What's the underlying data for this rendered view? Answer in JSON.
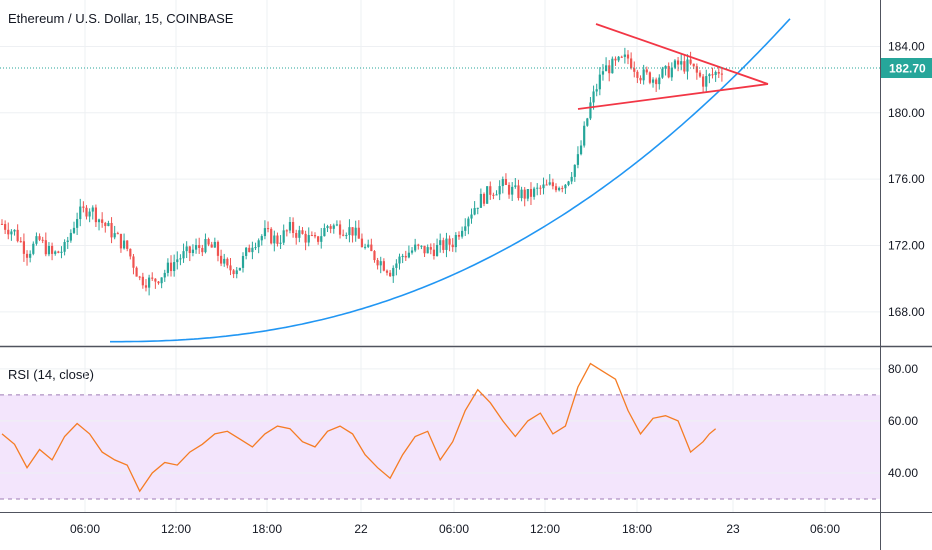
{
  "header": {
    "title": "Ethereum / U.S. Dollar, 15, COINBASE"
  },
  "rsi": {
    "title": "RSI (14, close)"
  },
  "chart_data": [
    {
      "type": "candlestick",
      "name": "price",
      "ylim": [
        166.0,
        186.8
      ],
      "y_ticks": [
        "184.00",
        "180.00",
        "176.00",
        "172.00",
        "168.00"
      ],
      "y_tick_values": [
        184,
        180,
        176,
        172,
        168
      ],
      "last_price": 182.7,
      "last_price_label": "182.70",
      "x_ticks": [
        "06:00",
        "12:00",
        "18:00",
        "22",
        "06:00",
        "12:00",
        "18:00",
        "23",
        "06:00"
      ],
      "grid": true,
      "colors": {
        "up": "#26a69a",
        "down": "#ef5350",
        "trendline": "#f23645",
        "curve": "#2196f3",
        "price_line": "#26a69a"
      },
      "anchors": [
        {
          "i": 0,
          "v": 173.3
        },
        {
          "i": 4,
          "v": 172.8
        },
        {
          "i": 8,
          "v": 171.6
        },
        {
          "i": 12,
          "v": 172.3
        },
        {
          "i": 16,
          "v": 171.4
        },
        {
          "i": 20,
          "v": 171.8
        },
        {
          "i": 24,
          "v": 173.8
        },
        {
          "i": 28,
          "v": 174.3
        },
        {
          "i": 32,
          "v": 173.4
        },
        {
          "i": 36,
          "v": 172.6
        },
        {
          "i": 40,
          "v": 171.8
        },
        {
          "i": 44,
          "v": 170.0
        },
        {
          "i": 48,
          "v": 169.8
        },
        {
          "i": 52,
          "v": 170.4
        },
        {
          "i": 56,
          "v": 171.2
        },
        {
          "i": 60,
          "v": 171.6
        },
        {
          "i": 64,
          "v": 172.0
        },
        {
          "i": 68,
          "v": 171.8
        },
        {
          "i": 72,
          "v": 170.5
        },
        {
          "i": 76,
          "v": 170.8
        },
        {
          "i": 80,
          "v": 172.2
        },
        {
          "i": 84,
          "v": 172.7
        },
        {
          "i": 88,
          "v": 172.3
        },
        {
          "i": 92,
          "v": 173.0
        },
        {
          "i": 96,
          "v": 172.6
        },
        {
          "i": 100,
          "v": 172.2
        },
        {
          "i": 104,
          "v": 173.2
        },
        {
          "i": 108,
          "v": 173.1
        },
        {
          "i": 112,
          "v": 172.9
        },
        {
          "i": 116,
          "v": 171.8
        },
        {
          "i": 120,
          "v": 171.2
        },
        {
          "i": 124,
          "v": 170.5
        },
        {
          "i": 128,
          "v": 171.4
        },
        {
          "i": 132,
          "v": 171.8
        },
        {
          "i": 136,
          "v": 171.7
        },
        {
          "i": 140,
          "v": 171.9
        },
        {
          "i": 144,
          "v": 172.2
        },
        {
          "i": 148,
          "v": 173.6
        },
        {
          "i": 152,
          "v": 174.6
        },
        {
          "i": 156,
          "v": 175.3
        },
        {
          "i": 160,
          "v": 175.6
        },
        {
          "i": 164,
          "v": 175.2
        },
        {
          "i": 168,
          "v": 175.0
        },
        {
          "i": 172,
          "v": 175.4
        },
        {
          "i": 176,
          "v": 175.6
        },
        {
          "i": 180,
          "v": 175.8
        },
        {
          "i": 184,
          "v": 177.2
        },
        {
          "i": 188,
          "v": 180.5
        },
        {
          "i": 192,
          "v": 182.6
        },
        {
          "i": 196,
          "v": 182.9
        },
        {
          "i": 200,
          "v": 183.3
        },
        {
          "i": 204,
          "v": 182.3
        },
        {
          "i": 208,
          "v": 182.1
        },
        {
          "i": 212,
          "v": 182.4
        },
        {
          "i": 216,
          "v": 182.9
        },
        {
          "i": 220,
          "v": 182.8
        },
        {
          "i": 224,
          "v": 181.9
        },
        {
          "i": 228,
          "v": 182.4
        },
        {
          "i": 230,
          "v": 182.7
        }
      ]
    },
    {
      "type": "line",
      "name": "RSI",
      "ylim": [
        25,
        88
      ],
      "y_ticks": [
        "80.00",
        "60.00",
        "40.00"
      ],
      "y_tick_values": [
        80,
        60,
        40
      ],
      "band": [
        30,
        70
      ],
      "colors": {
        "line": "#f57c24",
        "band_fill": "#f3e5fc",
        "band_border": "#9e7bb5"
      },
      "points": [
        [
          0,
          55
        ],
        [
          4,
          51
        ],
        [
          8,
          42
        ],
        [
          12,
          49
        ],
        [
          16,
          45
        ],
        [
          20,
          54
        ],
        [
          24,
          59
        ],
        [
          28,
          55
        ],
        [
          32,
          48
        ],
        [
          36,
          45
        ],
        [
          40,
          43
        ],
        [
          44,
          33
        ],
        [
          48,
          40
        ],
        [
          52,
          44
        ],
        [
          56,
          43
        ],
        [
          60,
          48
        ],
        [
          64,
          51
        ],
        [
          68,
          55
        ],
        [
          72,
          56
        ],
        [
          76,
          53
        ],
        [
          80,
          50
        ],
        [
          84,
          55
        ],
        [
          88,
          58
        ],
        [
          92,
          57
        ],
        [
          96,
          52
        ],
        [
          100,
          50
        ],
        [
          104,
          56
        ],
        [
          108,
          58
        ],
        [
          112,
          55
        ],
        [
          116,
          47
        ],
        [
          120,
          42
        ],
        [
          124,
          38
        ],
        [
          128,
          47
        ],
        [
          132,
          54
        ],
        [
          136,
          56
        ],
        [
          140,
          45
        ],
        [
          144,
          52
        ],
        [
          148,
          64
        ],
        [
          152,
          72
        ],
        [
          156,
          67
        ],
        [
          160,
          60
        ],
        [
          164,
          54
        ],
        [
          168,
          60
        ],
        [
          172,
          63
        ],
        [
          176,
          55
        ],
        [
          180,
          58
        ],
        [
          184,
          73
        ],
        [
          188,
          82
        ],
        [
          192,
          79
        ],
        [
          196,
          76
        ],
        [
          200,
          64
        ],
        [
          204,
          55
        ],
        [
          208,
          61
        ],
        [
          212,
          62
        ],
        [
          216,
          60
        ],
        [
          220,
          48
        ],
        [
          224,
          52
        ],
        [
          226,
          55
        ],
        [
          228,
          57
        ]
      ]
    }
  ]
}
